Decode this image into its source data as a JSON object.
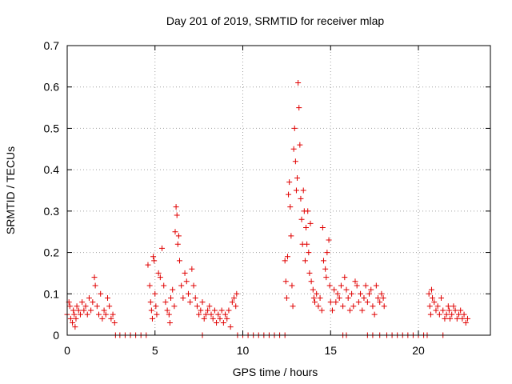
{
  "chart_data": {
    "type": "scatter",
    "title": "Day 201 of 2019, SRMTID for receiver mlap",
    "xlabel": "GPS time / hours",
    "ylabel": "SRMTID / TECUs",
    "xlim": [
      0,
      24.1
    ],
    "ylim": [
      0,
      0.7
    ],
    "xticks": [
      0,
      5,
      10,
      15,
      20
    ],
    "xtick_labels": [
      "0",
      "5",
      "10",
      "15",
      "20"
    ],
    "yticks": [
      0,
      0.1,
      0.2,
      0.3,
      0.4,
      0.5,
      0.6,
      0.7
    ],
    "ytick_labels": [
      "0",
      "0.1",
      "0.2",
      "0.3",
      "0.4",
      "0.5",
      "0.6",
      "0.7"
    ],
    "grid": true,
    "marker": "+",
    "series_color": "#e00000",
    "series": [
      {
        "name": "SRMTID",
        "points": [
          [
            0.0,
            0.05
          ],
          [
            0.1,
            0.08
          ],
          [
            0.15,
            0.07
          ],
          [
            0.2,
            0.04
          ],
          [
            0.3,
            0.03
          ],
          [
            0.35,
            0.06
          ],
          [
            0.4,
            0.05
          ],
          [
            0.45,
            0.02
          ],
          [
            0.5,
            0.04
          ],
          [
            0.55,
            0.07
          ],
          [
            0.65,
            0.06
          ],
          [
            0.75,
            0.05
          ],
          [
            0.85,
            0.08
          ],
          [
            0.95,
            0.06
          ],
          [
            1.05,
            0.07
          ],
          [
            1.15,
            0.05
          ],
          [
            1.25,
            0.09
          ],
          [
            1.35,
            0.06
          ],
          [
            1.45,
            0.08
          ],
          [
            1.55,
            0.14
          ],
          [
            1.6,
            0.12
          ],
          [
            1.7,
            0.07
          ],
          [
            1.8,
            0.05
          ],
          [
            1.9,
            0.1
          ],
          [
            2.0,
            0.04
          ],
          [
            2.1,
            0.06
          ],
          [
            2.2,
            0.05
          ],
          [
            2.3,
            0.09
          ],
          [
            2.4,
            0.07
          ],
          [
            2.5,
            0.04
          ],
          [
            2.6,
            0.05
          ],
          [
            2.7,
            0.03
          ],
          [
            2.75,
            0.0
          ],
          [
            3.0,
            0.0
          ],
          [
            3.3,
            0.0
          ],
          [
            3.6,
            0.0
          ],
          [
            3.9,
            0.0
          ],
          [
            4.2,
            0.0
          ],
          [
            4.5,
            0.0
          ],
          [
            4.6,
            0.17
          ],
          [
            4.7,
            0.12
          ],
          [
            4.75,
            0.08
          ],
          [
            4.8,
            0.06
          ],
          [
            4.85,
            0.04
          ],
          [
            4.9,
            0.19
          ],
          [
            4.95,
            0.18
          ],
          [
            5.0,
            0.1
          ],
          [
            5.05,
            0.07
          ],
          [
            5.1,
            0.05
          ],
          [
            5.2,
            0.15
          ],
          [
            5.3,
            0.14
          ],
          [
            5.4,
            0.21
          ],
          [
            5.5,
            0.12
          ],
          [
            5.6,
            0.08
          ],
          [
            5.7,
            0.06
          ],
          [
            5.8,
            0.05
          ],
          [
            5.85,
            0.03
          ],
          [
            5.9,
            0.09
          ],
          [
            6.0,
            0.11
          ],
          [
            6.1,
            0.07
          ],
          [
            6.15,
            0.25
          ],
          [
            6.2,
            0.31
          ],
          [
            6.25,
            0.29
          ],
          [
            6.3,
            0.22
          ],
          [
            6.35,
            0.24
          ],
          [
            6.4,
            0.18
          ],
          [
            6.5,
            0.12
          ],
          [
            6.6,
            0.09
          ],
          [
            6.7,
            0.15
          ],
          [
            6.8,
            0.13
          ],
          [
            6.9,
            0.1
          ],
          [
            7.0,
            0.08
          ],
          [
            7.1,
            0.16
          ],
          [
            7.2,
            0.12
          ],
          [
            7.3,
            0.09
          ],
          [
            7.4,
            0.07
          ],
          [
            7.5,
            0.05
          ],
          [
            7.6,
            0.06
          ],
          [
            7.7,
            0.08
          ],
          [
            7.8,
            0.04
          ],
          [
            7.9,
            0.05
          ],
          [
            8.0,
            0.06
          ],
          [
            8.1,
            0.07
          ],
          [
            8.2,
            0.05
          ],
          [
            8.3,
            0.04
          ],
          [
            8.4,
            0.06
          ],
          [
            8.5,
            0.03
          ],
          [
            8.6,
            0.05
          ],
          [
            8.7,
            0.04
          ],
          [
            8.8,
            0.06
          ],
          [
            8.9,
            0.03
          ],
          [
            9.0,
            0.05
          ],
          [
            9.1,
            0.04
          ],
          [
            9.2,
            0.06
          ],
          [
            9.3,
            0.02
          ],
          [
            9.4,
            0.08
          ],
          [
            9.5,
            0.09
          ],
          [
            9.6,
            0.07
          ],
          [
            9.65,
            0.1
          ],
          [
            7.7,
            0.0
          ],
          [
            9.7,
            0.0
          ],
          [
            10.0,
            0.0
          ],
          [
            10.3,
            0.0
          ],
          [
            10.6,
            0.0
          ],
          [
            10.9,
            0.0
          ],
          [
            11.2,
            0.0
          ],
          [
            11.5,
            0.0
          ],
          [
            11.8,
            0.0
          ],
          [
            12.1,
            0.0
          ],
          [
            12.4,
            0.0
          ],
          [
            12.4,
            0.18
          ],
          [
            12.45,
            0.13
          ],
          [
            12.5,
            0.09
          ],
          [
            12.55,
            0.19
          ],
          [
            12.6,
            0.34
          ],
          [
            12.65,
            0.37
          ],
          [
            12.7,
            0.31
          ],
          [
            12.75,
            0.24
          ],
          [
            12.8,
            0.12
          ],
          [
            12.85,
            0.07
          ],
          [
            12.9,
            0.45
          ],
          [
            12.95,
            0.5
          ],
          [
            13.0,
            0.42
          ],
          [
            13.05,
            0.35
          ],
          [
            13.1,
            0.38
          ],
          [
            13.15,
            0.61
          ],
          [
            13.2,
            0.55
          ],
          [
            13.25,
            0.46
          ],
          [
            13.3,
            0.33
          ],
          [
            13.35,
            0.28
          ],
          [
            13.4,
            0.22
          ],
          [
            13.45,
            0.35
          ],
          [
            13.5,
            0.3
          ],
          [
            13.55,
            0.18
          ],
          [
            13.6,
            0.26
          ],
          [
            13.65,
            0.22
          ],
          [
            13.7,
            0.3
          ],
          [
            13.75,
            0.2
          ],
          [
            13.8,
            0.15
          ],
          [
            13.85,
            0.27
          ],
          [
            13.9,
            0.13
          ],
          [
            14.0,
            0.11
          ],
          [
            14.05,
            0.09
          ],
          [
            14.1,
            0.08
          ],
          [
            14.2,
            0.1
          ],
          [
            14.3,
            0.07
          ],
          [
            14.4,
            0.09
          ],
          [
            14.5,
            0.06
          ],
          [
            14.55,
            0.26
          ],
          [
            14.6,
            0.18
          ],
          [
            14.7,
            0.16
          ],
          [
            14.75,
            0.14
          ],
          [
            14.8,
            0.2
          ],
          [
            14.9,
            0.23
          ],
          [
            14.95,
            0.12
          ],
          [
            15.0,
            0.08
          ],
          [
            15.1,
            0.06
          ],
          [
            15.2,
            0.11
          ],
          [
            15.3,
            0.08
          ],
          [
            15.4,
            0.1
          ],
          [
            15.5,
            0.09
          ],
          [
            15.6,
            0.12
          ],
          [
            15.7,
            0.07
          ],
          [
            15.8,
            0.14
          ],
          [
            15.9,
            0.11
          ],
          [
            16.0,
            0.09
          ],
          [
            16.1,
            0.06
          ],
          [
            16.2,
            0.1
          ],
          [
            16.3,
            0.07
          ],
          [
            16.4,
            0.13
          ],
          [
            16.5,
            0.12
          ],
          [
            16.6,
            0.08
          ],
          [
            16.7,
            0.1
          ],
          [
            16.8,
            0.06
          ],
          [
            16.9,
            0.09
          ],
          [
            17.0,
            0.12
          ],
          [
            17.1,
            0.08
          ],
          [
            17.2,
            0.1
          ],
          [
            17.3,
            0.11
          ],
          [
            17.4,
            0.07
          ],
          [
            17.5,
            0.05
          ],
          [
            17.6,
            0.12
          ],
          [
            17.7,
            0.09
          ],
          [
            17.8,
            0.08
          ],
          [
            17.9,
            0.1
          ],
          [
            18.0,
            0.09
          ],
          [
            18.05,
            0.07
          ],
          [
            15.7,
            0.0
          ],
          [
            15.9,
            0.0
          ],
          [
            17.1,
            0.0
          ],
          [
            17.4,
            0.0
          ],
          [
            17.8,
            0.0
          ],
          [
            18.2,
            0.0
          ],
          [
            18.5,
            0.0
          ],
          [
            18.8,
            0.0
          ],
          [
            19.1,
            0.0
          ],
          [
            19.4,
            0.0
          ],
          [
            19.7,
            0.0
          ],
          [
            20.0,
            0.0
          ],
          [
            20.3,
            0.0
          ],
          [
            20.5,
            0.0
          ],
          [
            20.6,
            0.1
          ],
          [
            20.65,
            0.07
          ],
          [
            20.7,
            0.05
          ],
          [
            20.75,
            0.11
          ],
          [
            20.8,
            0.09
          ],
          [
            20.9,
            0.08
          ],
          [
            21.0,
            0.06
          ],
          [
            21.1,
            0.07
          ],
          [
            21.2,
            0.05
          ],
          [
            21.3,
            0.09
          ],
          [
            21.4,
            0.06
          ],
          [
            21.5,
            0.04
          ],
          [
            21.6,
            0.05
          ],
          [
            21.7,
            0.07
          ],
          [
            21.75,
            0.06
          ],
          [
            21.8,
            0.04
          ],
          [
            21.9,
            0.05
          ],
          [
            22.0,
            0.07
          ],
          [
            22.1,
            0.06
          ],
          [
            22.2,
            0.04
          ],
          [
            22.3,
            0.05
          ],
          [
            22.4,
            0.06
          ],
          [
            22.5,
            0.04
          ],
          [
            22.6,
            0.05
          ],
          [
            22.7,
            0.03
          ],
          [
            22.8,
            0.04
          ],
          [
            21.4,
            0.0
          ]
        ]
      }
    ]
  }
}
